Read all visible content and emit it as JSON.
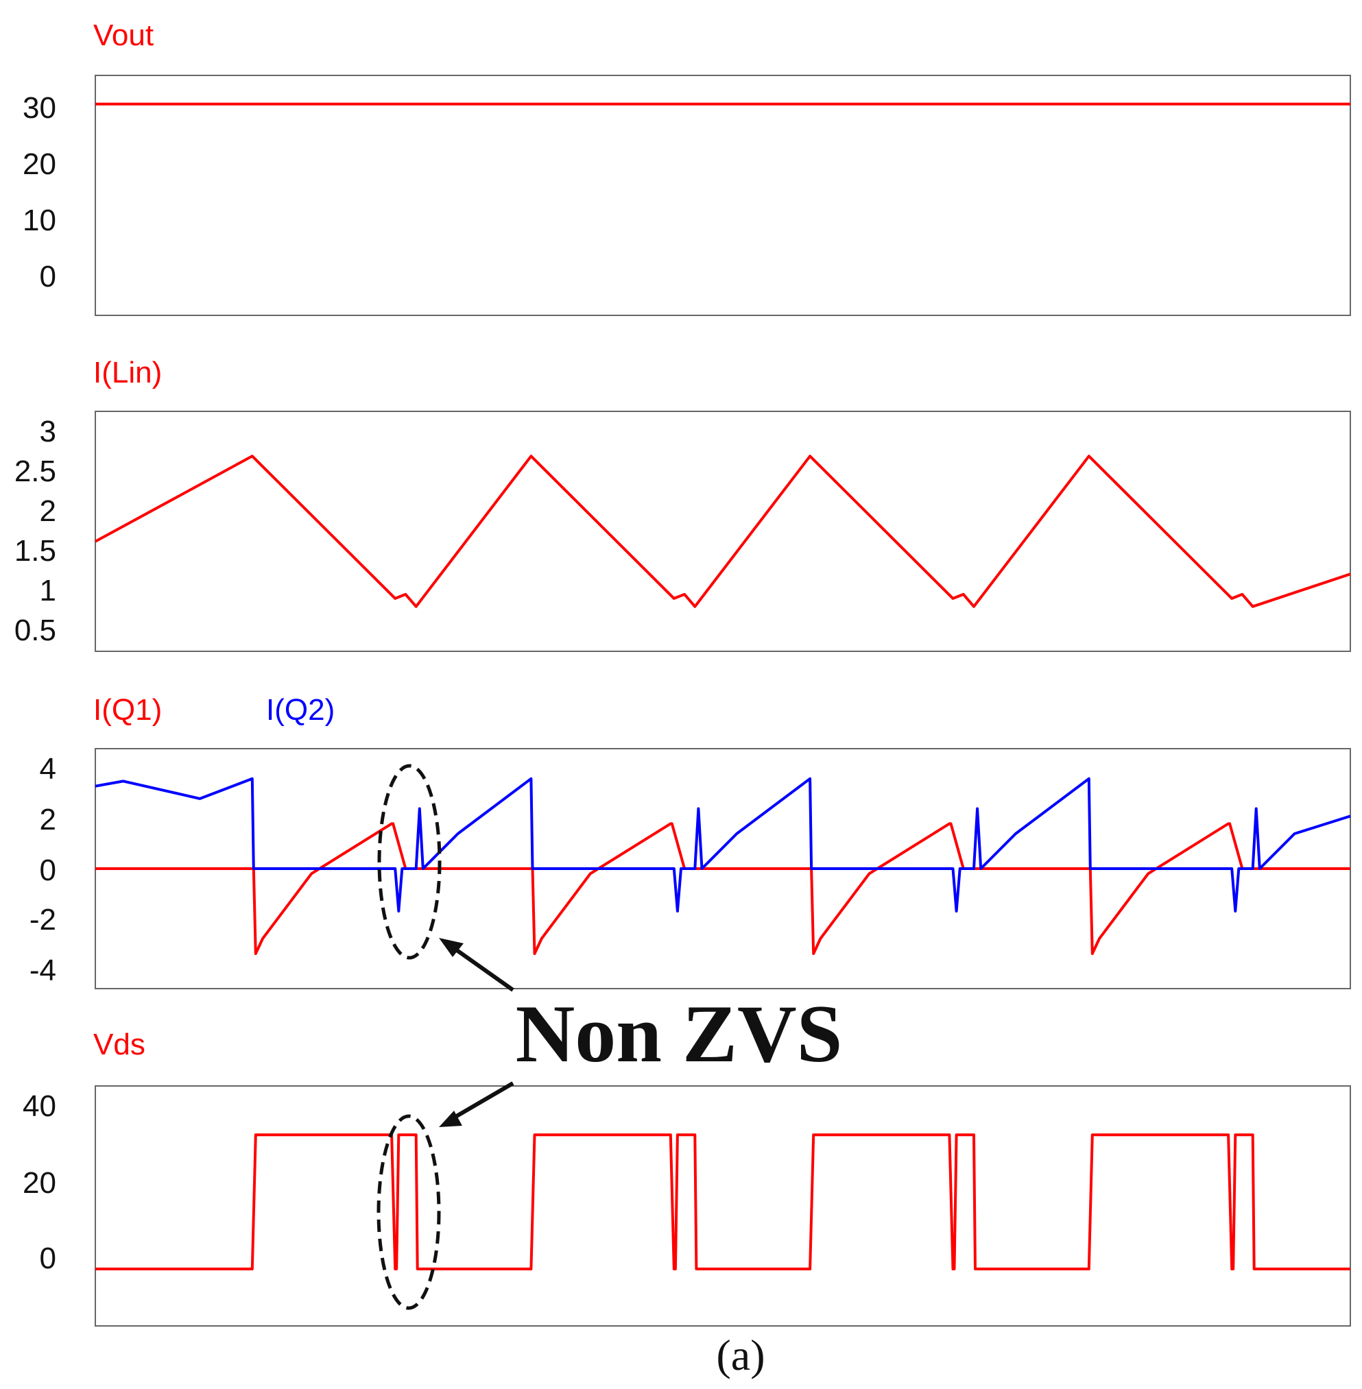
{
  "chart_data": [
    {
      "type": "line",
      "series": [
        {
          "name": "Vout",
          "color": "#ff0000",
          "x": [
            0,
            18
          ],
          "y": [
            31,
            31
          ]
        }
      ],
      "ylim": [
        -6,
        36
      ],
      "yticks": [
        "30",
        "20",
        "10",
        "0"
      ]
    },
    {
      "type": "line",
      "series": [
        {
          "name": "I(Lin)",
          "color": "#ff0000",
          "x": [
            0,
            2.25,
            4.3,
            4.45,
            4.6,
            6.25,
            8.3,
            8.45,
            8.6,
            10.25,
            12.3,
            12.45,
            12.6,
            14.25,
            16.3,
            16.45,
            16.6,
            18
          ],
          "y": [
            1.6,
            2.65,
            0.9,
            0.95,
            0.8,
            2.65,
            0.9,
            0.95,
            0.8,
            2.65,
            0.9,
            0.95,
            0.8,
            2.65,
            0.9,
            0.95,
            0.8,
            1.2
          ]
        }
      ],
      "ylim": [
        0.25,
        3.2
      ],
      "yticks": [
        "3",
        "2.5",
        "2",
        "1.5",
        "1",
        "0.5"
      ]
    },
    {
      "type": "line",
      "series": [
        {
          "name": "I(Q1)",
          "color": "#ff0000",
          "x": [
            0,
            2.27,
            2.3,
            2.4,
            3.1,
            4.25,
            4.27,
            4.45,
            4.9,
            6.27,
            6.3,
            6.4,
            7.1,
            8.25,
            8.27,
            8.45,
            8.9,
            10.27,
            10.3,
            10.4,
            11.1,
            12.25,
            12.27,
            12.45,
            12.9,
            14.27,
            14.3,
            14.4,
            15.1,
            16.25,
            16.27,
            16.45,
            18
          ],
          "y": [
            0,
            0,
            -3.4,
            -2.8,
            -0.2,
            1.8,
            1.8,
            0,
            0,
            0,
            -3.4,
            -2.8,
            -0.2,
            1.8,
            1.8,
            0,
            0,
            0,
            -3.4,
            -2.8,
            -0.2,
            1.8,
            1.8,
            0,
            0,
            0,
            -3.4,
            -2.8,
            -0.2,
            1.8,
            1.8,
            0,
            0
          ]
        },
        {
          "name": "I(Q2)",
          "color": "#0000ff",
          "x": [
            0,
            0.4,
            1.5,
            2.25,
            2.27,
            2.3,
            4.3,
            4.35,
            4.4,
            4.6,
            4.65,
            4.7,
            5.2,
            6.25,
            6.27,
            6.3,
            8.3,
            8.35,
            8.4,
            8.6,
            8.65,
            8.7,
            9.2,
            10.25,
            10.27,
            10.3,
            12.3,
            12.35,
            12.4,
            12.6,
            12.65,
            12.7,
            13.2,
            14.25,
            14.27,
            14.3,
            16.3,
            16.35,
            16.4,
            16.6,
            16.65,
            16.7,
            17.2,
            18
          ],
          "y": [
            3.3,
            3.5,
            2.8,
            3.6,
            0,
            0,
            0,
            -1.7,
            0,
            0,
            2.4,
            0,
            1.4,
            3.6,
            0,
            0,
            0,
            -1.7,
            0,
            0,
            2.4,
            0,
            1.4,
            3.6,
            0,
            0,
            0,
            -1.7,
            0,
            0,
            2.4,
            0,
            1.4,
            3.6,
            0,
            0,
            0,
            -1.7,
            0,
            0,
            2.4,
            0,
            1.4,
            2.1
          ]
        }
      ],
      "ylim": [
        -4.8,
        4.8
      ],
      "yticks": [
        "4",
        "2",
        "0",
        "-2",
        "-4"
      ]
    },
    {
      "type": "line",
      "series": [
        {
          "name": "Vds",
          "color": "#ff0000",
          "x": [
            0,
            2.25,
            2.3,
            4.25,
            4.3,
            4.32,
            4.35,
            4.38,
            4.6,
            4.62,
            6.25,
            6.3,
            8.25,
            8.3,
            8.32,
            8.35,
            8.38,
            8.6,
            8.62,
            10.25,
            10.3,
            12.25,
            12.3,
            12.32,
            12.35,
            12.38,
            12.6,
            12.62,
            14.25,
            14.3,
            16.25,
            16.3,
            16.32,
            16.35,
            16.38,
            16.6,
            16.62,
            18
          ],
          "y": [
            0,
            0,
            33,
            33,
            0,
            0,
            33,
            33,
            33,
            0,
            0,
            33,
            33,
            0,
            0,
            33,
            33,
            33,
            0,
            0,
            33,
            33,
            0,
            0,
            33,
            33,
            33,
            0,
            0,
            33,
            33,
            0,
            0,
            33,
            33,
            33,
            0,
            0
          ]
        }
      ],
      "ylim": [
        -14,
        45
      ],
      "yticks": [
        "40",
        "20",
        "0"
      ]
    }
  ],
  "annotation": {
    "text": "Non ZVS"
  },
  "caption": "(a)"
}
